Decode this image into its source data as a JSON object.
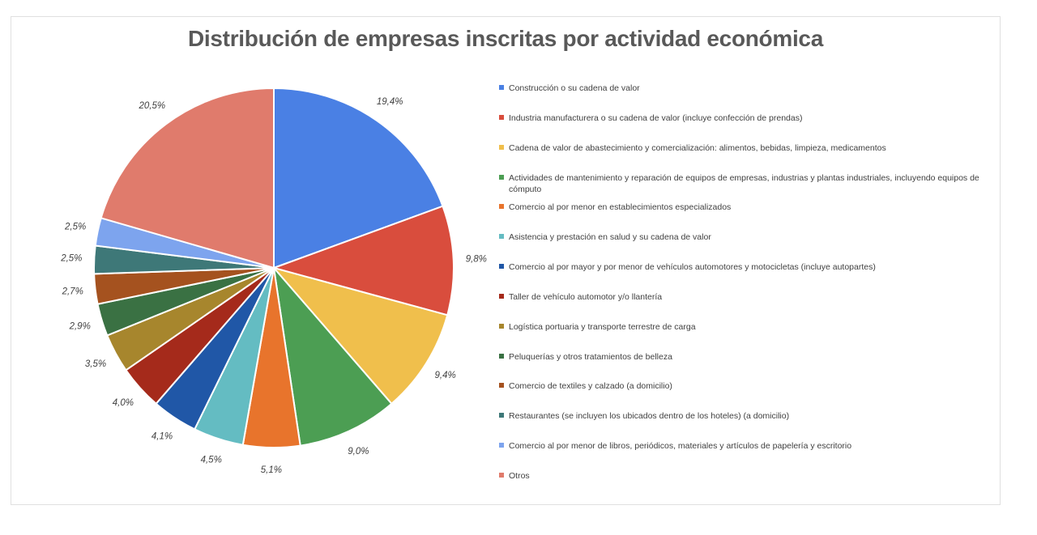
{
  "chart": {
    "title_color": "#595959",
    "frame_border_color": "#e0e0e0",
    "background": "#ffffff",
    "label_color": "#404040"
  },
  "chart_data": {
    "type": "pie",
    "title": "Distribución de empresas inscritas por actividad económica",
    "legend_position": "right",
    "start_angle_deg": 0,
    "direction": "clockwise",
    "value_unit": "percent",
    "slices": [
      {
        "label": "Construcción o su cadena de valor",
        "value": 19.4,
        "display": "19,4%",
        "color": "#4a80e4"
      },
      {
        "label": "Industria manufacturera o su cadena de valor (incluye confección de prendas)",
        "value": 9.8,
        "display": "9,8%",
        "color": "#d94d3d"
      },
      {
        "label": "Cadena de valor de abastecimiento y comercialización: alimentos, bebidas, limpieza, medicamentos",
        "value": 9.4,
        "display": "9,4%",
        "color": "#f0bf4c"
      },
      {
        "label": "Actividades de mantenimiento y reparación de equipos de empresas, industrias y plantas industriales, incluyendo equipos de cómputo",
        "value": 9.0,
        "display": "9,0%",
        "color": "#4c9e53"
      },
      {
        "label": "Comercio al por menor en establecimientos especializados",
        "value": 5.1,
        "display": "5,1%",
        "color": "#e8742c"
      },
      {
        "label": "Asistencia y prestación en salud y su cadena de valor",
        "value": 4.5,
        "display": "4,5%",
        "color": "#64bcc2"
      },
      {
        "label": "Comercio al por mayor y por menor de vehículos automotores y motocicletas (incluye autopartes)",
        "value": 4.1,
        "display": "4,1%",
        "color": "#2057a7"
      },
      {
        "label": "Taller de vehículo automotor y/o llantería",
        "value": 4.0,
        "display": "4,0%",
        "color": "#a52a1b"
      },
      {
        "label": "Logística portuaria y transporte terrestre de carga",
        "value": 3.5,
        "display": "3,5%",
        "color": "#a7862d"
      },
      {
        "label": "Peluquerías y otros tratamientos de belleza",
        "value": 2.9,
        "display": "2,9%",
        "color": "#3a7143"
      },
      {
        "label": "Comercio de textiles y calzado (a domicilio)",
        "value": 2.7,
        "display": "2,7%",
        "color": "#a5521f"
      },
      {
        "label": "Restaurantes (se incluyen los ubicados dentro de los hoteles) (a domicilio)",
        "value": 2.5,
        "display": "2,5%",
        "color": "#3e7878"
      },
      {
        "label": "Comercio al por menor de libros, periódicos, materiales y artículos de papelería y escritorio",
        "value": 2.5,
        "display": "2,5%",
        "color": "#7da4ee"
      },
      {
        "label": "Otros",
        "value": 20.5,
        "display": "20,5%",
        "color": "#e07b6c"
      }
    ]
  }
}
